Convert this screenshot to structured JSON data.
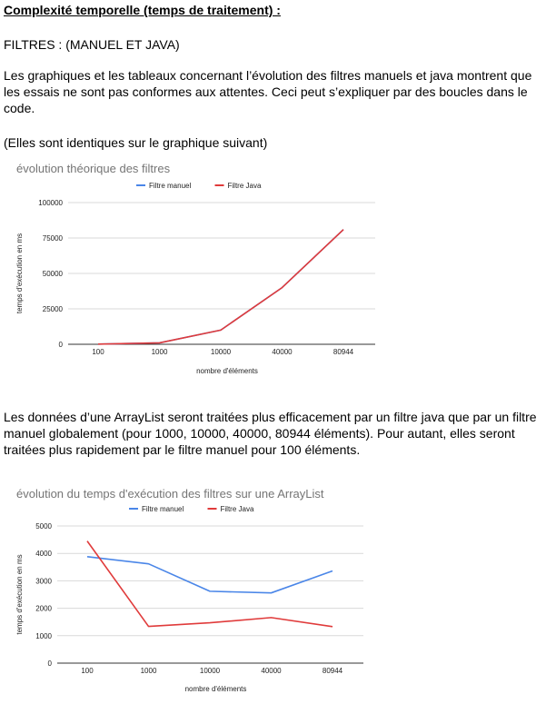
{
  "document": {
    "heading": "Complexité temporelle (temps de traitement) :",
    "section_title": "FILTRES : (MANUEL ET JAVA)",
    "paragraph_1": "Les graphiques et les tableaux concernant l’évolution des filtres manuels et java montrent que les essais ne sont pas conformes aux attentes. Ceci peut s’expliquer par des boucles dans le code.",
    "paragraph_2": "(Elles sont identiques sur le graphique suivant)",
    "paragraph_3": "Les données d’une ArrayList seront traitées plus efficacement par un filtre java que par un filtre manuel globalement (pour 1000, 10000, 40000, 80944 éléments). Pour autant, elles seront traitées plus rapidement par le filtre manuel pour 100 éléments."
  },
  "chart_data": [
    {
      "type": "line",
      "title": "évolution théorique des filtres",
      "xlabel": "nombre d'éléments",
      "ylabel": "temps d'exécution en ms",
      "categories": [
        "100",
        "1000",
        "10000",
        "40000",
        "80944"
      ],
      "ylim": [
        0,
        100000
      ],
      "yticks": [
        0,
        25000,
        50000,
        75000,
        100000
      ],
      "grid": true,
      "legend": "top",
      "series": [
        {
          "name": "Filtre manuel",
          "color": "#4a86e8",
          "values": [
            100,
            1000,
            10000,
            40000,
            80944
          ]
        },
        {
          "name": "Filtre Java",
          "color": "#e03b3b",
          "values": [
            100,
            1000,
            10000,
            40000,
            80944
          ]
        }
      ]
    },
    {
      "type": "line",
      "title": "évolution du temps d'exécution des filtres sur une ArrayList",
      "xlabel": "nombre d'éléments",
      "ylabel": "temps d'exécution en ms",
      "categories": [
        "100",
        "1000",
        "10000",
        "40000",
        "80944"
      ],
      "ylim": [
        0,
        5000
      ],
      "yticks": [
        0,
        1000,
        2000,
        3000,
        4000,
        5000
      ],
      "grid": true,
      "legend": "top",
      "series": [
        {
          "name": "Filtre manuel",
          "color": "#4a86e8",
          "values": [
            3880,
            3620,
            2620,
            2560,
            3360
          ]
        },
        {
          "name": "Filtre Java",
          "color": "#e03b3b",
          "values": [
            4450,
            1340,
            1470,
            1660,
            1330
          ]
        }
      ]
    }
  ]
}
